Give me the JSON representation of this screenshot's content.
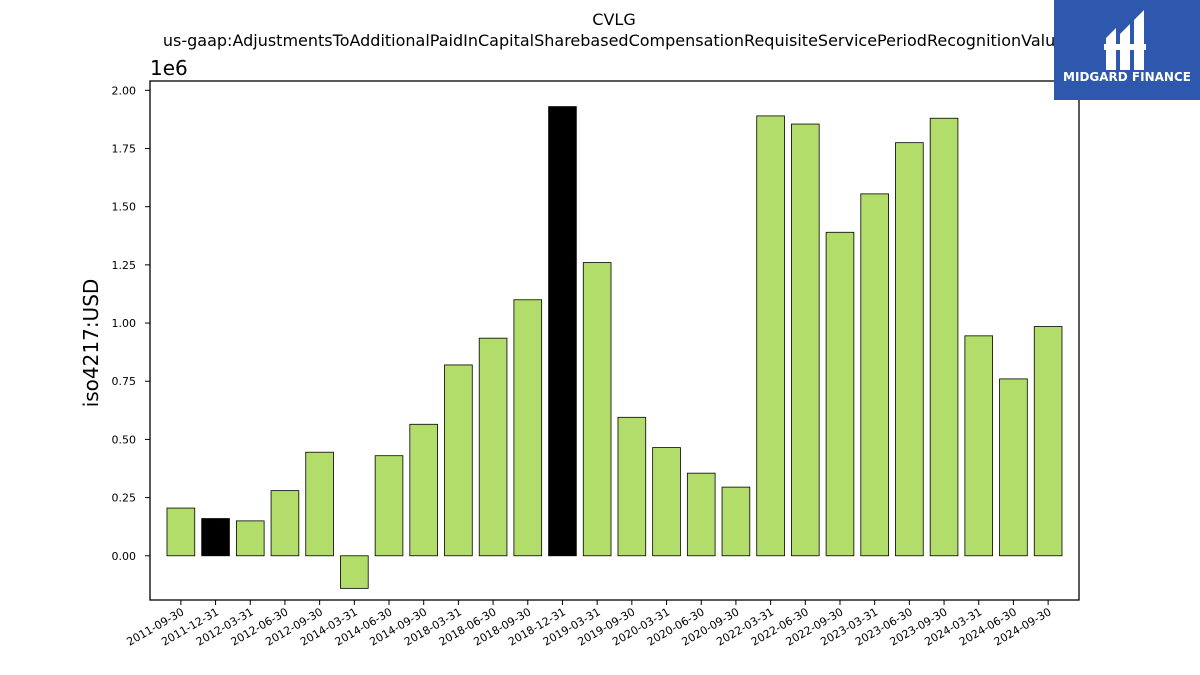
{
  "chart_data": {
    "type": "bar",
    "title": "CVLG",
    "subtitle": "us-gaap:AdjustmentsToAdditionalPaidInCapitalSharebasedCompensationRequisiteServicePeriodRecognitionValue",
    "xlabel": "",
    "ylabel": "iso4217:USD",
    "y_multiplier_label": "1e6",
    "ylim": [
      -190000,
      2040000
    ],
    "yticks": [
      0,
      250000,
      500000,
      750000,
      1000000,
      1250000,
      1500000,
      1750000,
      2000000
    ],
    "ytick_labels": [
      "0.00",
      "0.25",
      "0.50",
      "0.75",
      "1.00",
      "1.25",
      "1.50",
      "1.75",
      "2.00"
    ],
    "grid": false,
    "categories": [
      "2011-09-30",
      "2011-12-31",
      "2012-03-31",
      "2012-06-30",
      "2012-09-30",
      "2014-03-31",
      "2014-06-30",
      "2014-09-30",
      "2018-03-31",
      "2018-06-30",
      "2018-09-30",
      "2018-12-31",
      "2019-03-31",
      "2019-09-30",
      "2020-03-31",
      "2020-06-30",
      "2020-09-30",
      "2022-03-31",
      "2022-06-30",
      "2022-09-30",
      "2023-03-31",
      "2023-06-30",
      "2023-09-30",
      "2024-03-31",
      "2024-06-30",
      "2024-09-30"
    ],
    "values": [
      205000,
      160000,
      150000,
      280000,
      445000,
      -140000,
      430000,
      565000,
      820000,
      935000,
      1100000,
      1930000,
      1260000,
      595000,
      465000,
      355000,
      295000,
      1890000,
      1855000,
      1390000,
      1555000,
      1775000,
      1880000,
      945000,
      760000,
      985000
    ],
    "highlighted": [
      "2011-12-31",
      "2018-12-31"
    ],
    "colors": {
      "bar": "#b3dd6a",
      "highlight": "#000000",
      "edge": "#000000"
    }
  },
  "logo": {
    "text": "MIDGARD FINANCE",
    "background": "#2d58ad"
  }
}
